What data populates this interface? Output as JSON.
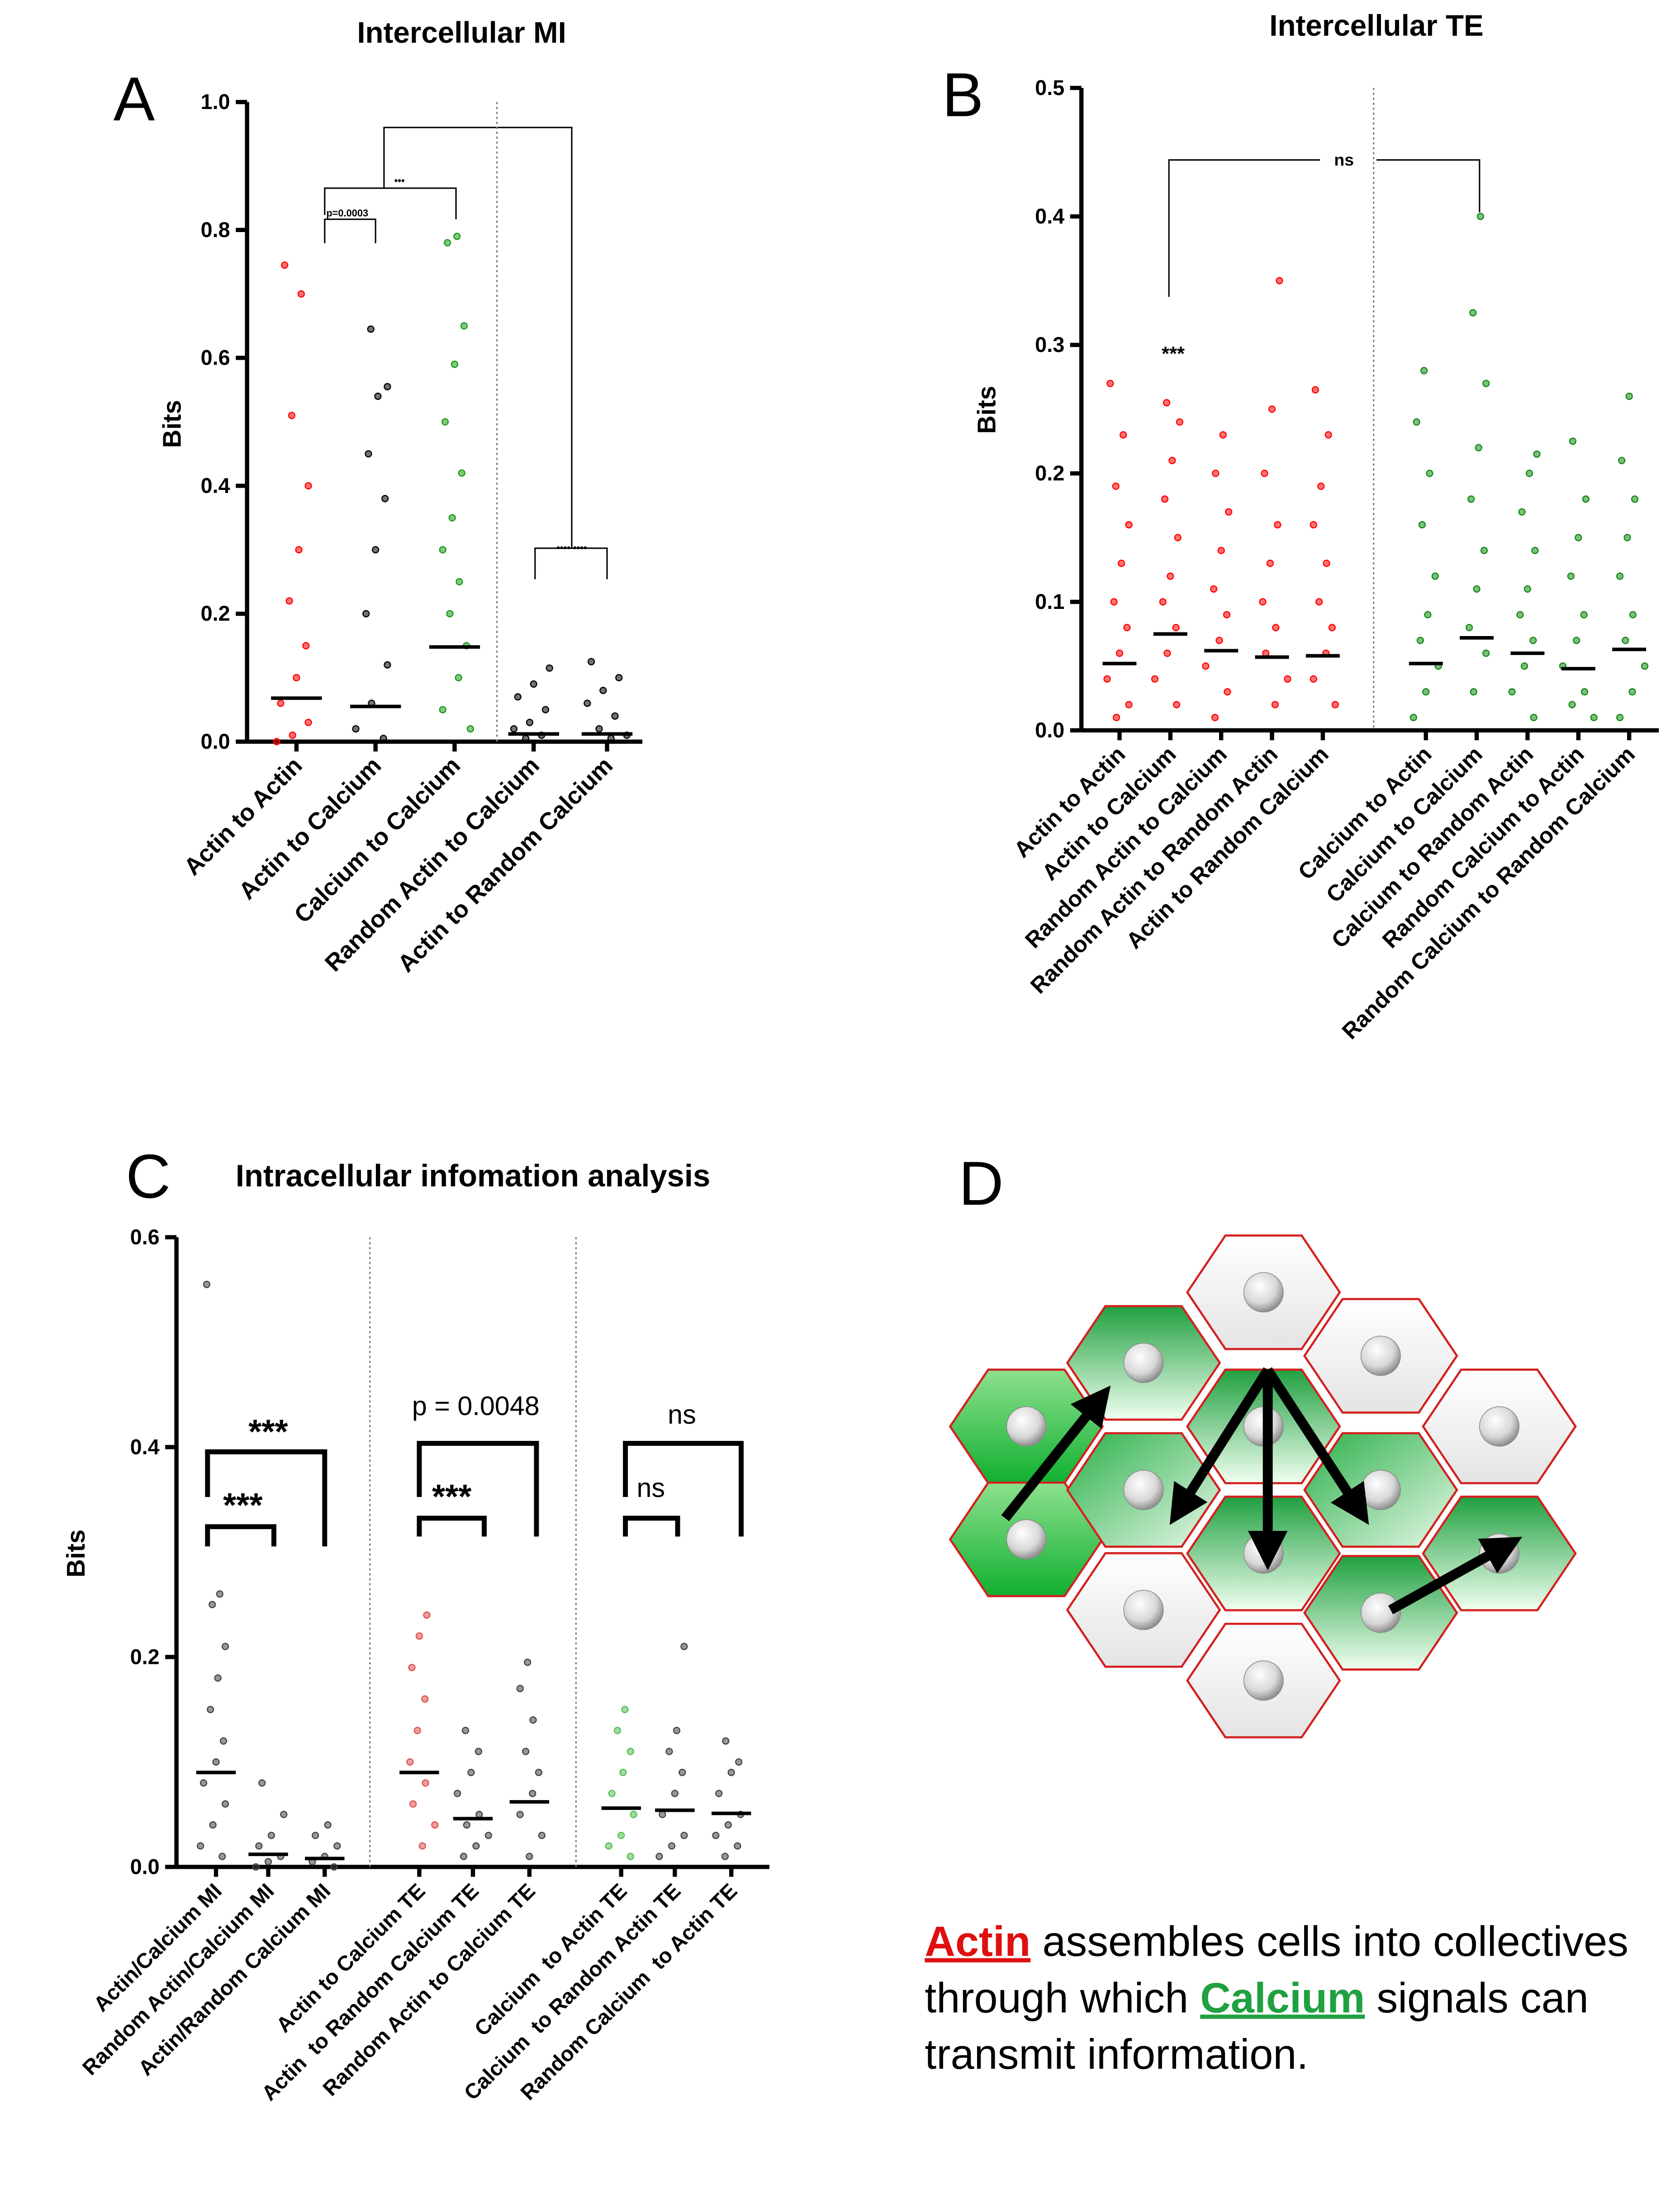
{
  "chart_data": [
    {
      "type": "dot",
      "panel": "A",
      "title": "Intercellular MI",
      "ylabel": "Bits",
      "categories": [
        "Actin to Actin",
        "Actin to Calcium",
        "Calcium to Calcium",
        "Random Actin to Calcium",
        "Actin to Random Calcium"
      ],
      "colors": [
        "#ff0000",
        "#000000",
        "#1a9a1a",
        "#000000",
        "#000000"
      ],
      "means": [
        0.068,
        0.055,
        0.148,
        0.012,
        0.012
      ],
      "points": [
        [
          0.745,
          0.7,
          0.51,
          0.4,
          0.3,
          0.22,
          0.15,
          0.1,
          0.06,
          0.03,
          0.01,
          0.0
        ],
        [
          0.645,
          0.555,
          0.54,
          0.45,
          0.38,
          0.3,
          0.2,
          0.12,
          0.06,
          0.02,
          0.005
        ],
        [
          0.79,
          0.78,
          0.65,
          0.59,
          0.5,
          0.42,
          0.35,
          0.3,
          0.25,
          0.2,
          0.15,
          0.1,
          0.05,
          0.02
        ],
        [
          0.115,
          0.09,
          0.07,
          0.05,
          0.03,
          0.02,
          0.01,
          0.005
        ],
        [
          0.125,
          0.1,
          0.08,
          0.06,
          0.04,
          0.02,
          0.01,
          0.005
        ]
      ],
      "ylim": [
        0,
        1
      ],
      "yticks": [
        {
          "value": 0,
          "label": "0.0"
        },
        0.2,
        0.4,
        0.6,
        0.8,
        {
          "value": 1,
          "label": "1.0"
        }
      ],
      "annotations": [
        "p=0.0003",
        "•••",
        "•••• ••••"
      ]
    },
    {
      "type": "dot",
      "panel": "B",
      "title": "Intercellular TE",
      "ylabel": "Bits",
      "categories": [
        "Actin to Actin",
        "Actin to Calcium",
        "Random Actin to Calcium",
        "Random Actin to Random Actin",
        "Actin to Random Calcium",
        "Calcium to Actin",
        "Calcium to Calcium",
        "Calcium to Random Actin",
        "Random Calcium to Actin",
        "Random Calcium to Random Calcium"
      ],
      "colors": [
        "#ff0000",
        "#ff0000",
        "#ff0000",
        "#ff0000",
        "#ff0000",
        "#138a13",
        "#138a13",
        "#138a13",
        "#138a13",
        "#138a13"
      ],
      "means": [
        0.052,
        0.075,
        0.062,
        0.057,
        0.058,
        0.052,
        0.072,
        0.06,
        0.048,
        0.063
      ],
      "points": [
        [
          0.27,
          0.23,
          0.19,
          0.16,
          0.13,
          0.1,
          0.08,
          0.06,
          0.04,
          0.02,
          0.01
        ],
        [
          0.255,
          0.24,
          0.21,
          0.18,
          0.15,
          0.12,
          0.1,
          0.08,
          0.06,
          0.04,
          0.02
        ],
        [
          0.23,
          0.2,
          0.17,
          0.14,
          0.11,
          0.09,
          0.07,
          0.05,
          0.03,
          0.01
        ],
        [
          0.35,
          0.25,
          0.2,
          0.16,
          0.13,
          0.1,
          0.08,
          0.06,
          0.04,
          0.02
        ],
        [
          0.265,
          0.23,
          0.19,
          0.16,
          0.13,
          0.1,
          0.08,
          0.06,
          0.04,
          0.02
        ],
        [
          0.28,
          0.24,
          0.2,
          0.16,
          0.12,
          0.09,
          0.07,
          0.05,
          0.03,
          0.01
        ],
        [
          0.4,
          0.325,
          0.27,
          0.22,
          0.18,
          0.14,
          0.11,
          0.08,
          0.06,
          0.03
        ],
        [
          0.215,
          0.2,
          0.17,
          0.14,
          0.11,
          0.09,
          0.07,
          0.05,
          0.03,
          0.01
        ],
        [
          0.225,
          0.18,
          0.15,
          0.12,
          0.09,
          0.07,
          0.05,
          0.03,
          0.02,
          0.01
        ],
        [
          0.26,
          0.21,
          0.18,
          0.15,
          0.12,
          0.09,
          0.07,
          0.05,
          0.03,
          0.01
        ]
      ],
      "ylim": [
        0,
        0.5
      ],
      "yticks": [
        {
          "value": 0,
          "label": "0.0"
        },
        0.1,
        0.2,
        0.3,
        0.4,
        0.5
      ],
      "annotations": [
        "***",
        "ns"
      ]
    },
    {
      "type": "dot",
      "panel": "C",
      "title": "Intracellular infomation analysis",
      "ylabel": "Bits",
      "categories": [
        "Actin/Calcium MI",
        "Random Actin/Calcium MI",
        "Actin/Random Calcium MI",
        "Actin to Calcium TE",
        "Actin  to Random Calcium TE",
        "Random Actin to Calcium TE",
        "Calcium  to Actin TE",
        "Calcium  to Random Actin TE",
        "Random Calcium  to Actin TE"
      ],
      "colors": [
        "#444444",
        "#444444",
        "#444444",
        "#e05050",
        "#444444",
        "#444444",
        "#55c055",
        "#444444",
        "#444444"
      ],
      "means": [
        0.09,
        0.012,
        0.008,
        0.09,
        0.046,
        0.062,
        0.056,
        0.054,
        0.051
      ],
      "points": [
        [
          0.555,
          0.26,
          0.25,
          0.21,
          0.18,
          0.15,
          0.12,
          0.1,
          0.08,
          0.06,
          0.04,
          0.02,
          0.01
        ],
        [
          0.08,
          0.05,
          0.03,
          0.02,
          0.01,
          0.005,
          0
        ],
        [
          0.04,
          0.03,
          0.02,
          0.01,
          0.005,
          0
        ],
        [
          0.24,
          0.22,
          0.19,
          0.16,
          0.13,
          0.1,
          0.08,
          0.06,
          0.04,
          0.02
        ],
        [
          0.13,
          0.11,
          0.09,
          0.07,
          0.05,
          0.04,
          0.03,
          0.02,
          0.01
        ],
        [
          0.195,
          0.17,
          0.14,
          0.11,
          0.09,
          0.07,
          0.05,
          0.03,
          0.01
        ],
        [
          0.15,
          0.13,
          0.11,
          0.09,
          0.07,
          0.05,
          0.03,
          0.02,
          0.01
        ],
        [
          0.21,
          0.13,
          0.11,
          0.09,
          0.07,
          0.05,
          0.03,
          0.02,
          0.01
        ],
        [
          0.12,
          0.1,
          0.09,
          0.07,
          0.05,
          0.04,
          0.03,
          0.02,
          0.01
        ]
      ],
      "ylim": [
        0,
        0.6
      ],
      "yticks": [
        {
          "value": 0,
          "label": "0.0"
        },
        0.2,
        0.4,
        0.6
      ],
      "annotations": [
        "***",
        "***",
        "p = 0.0048",
        "***",
        "ns",
        "ns"
      ]
    }
  ],
  "diagram": {
    "panel": "D",
    "caption": [
      [
        "Actin",
        " assembles cells into collectives"
      ],
      [
        "through which ",
        "Calcium",
        " signals can"
      ],
      [
        "transmit information."
      ]
    ]
  }
}
